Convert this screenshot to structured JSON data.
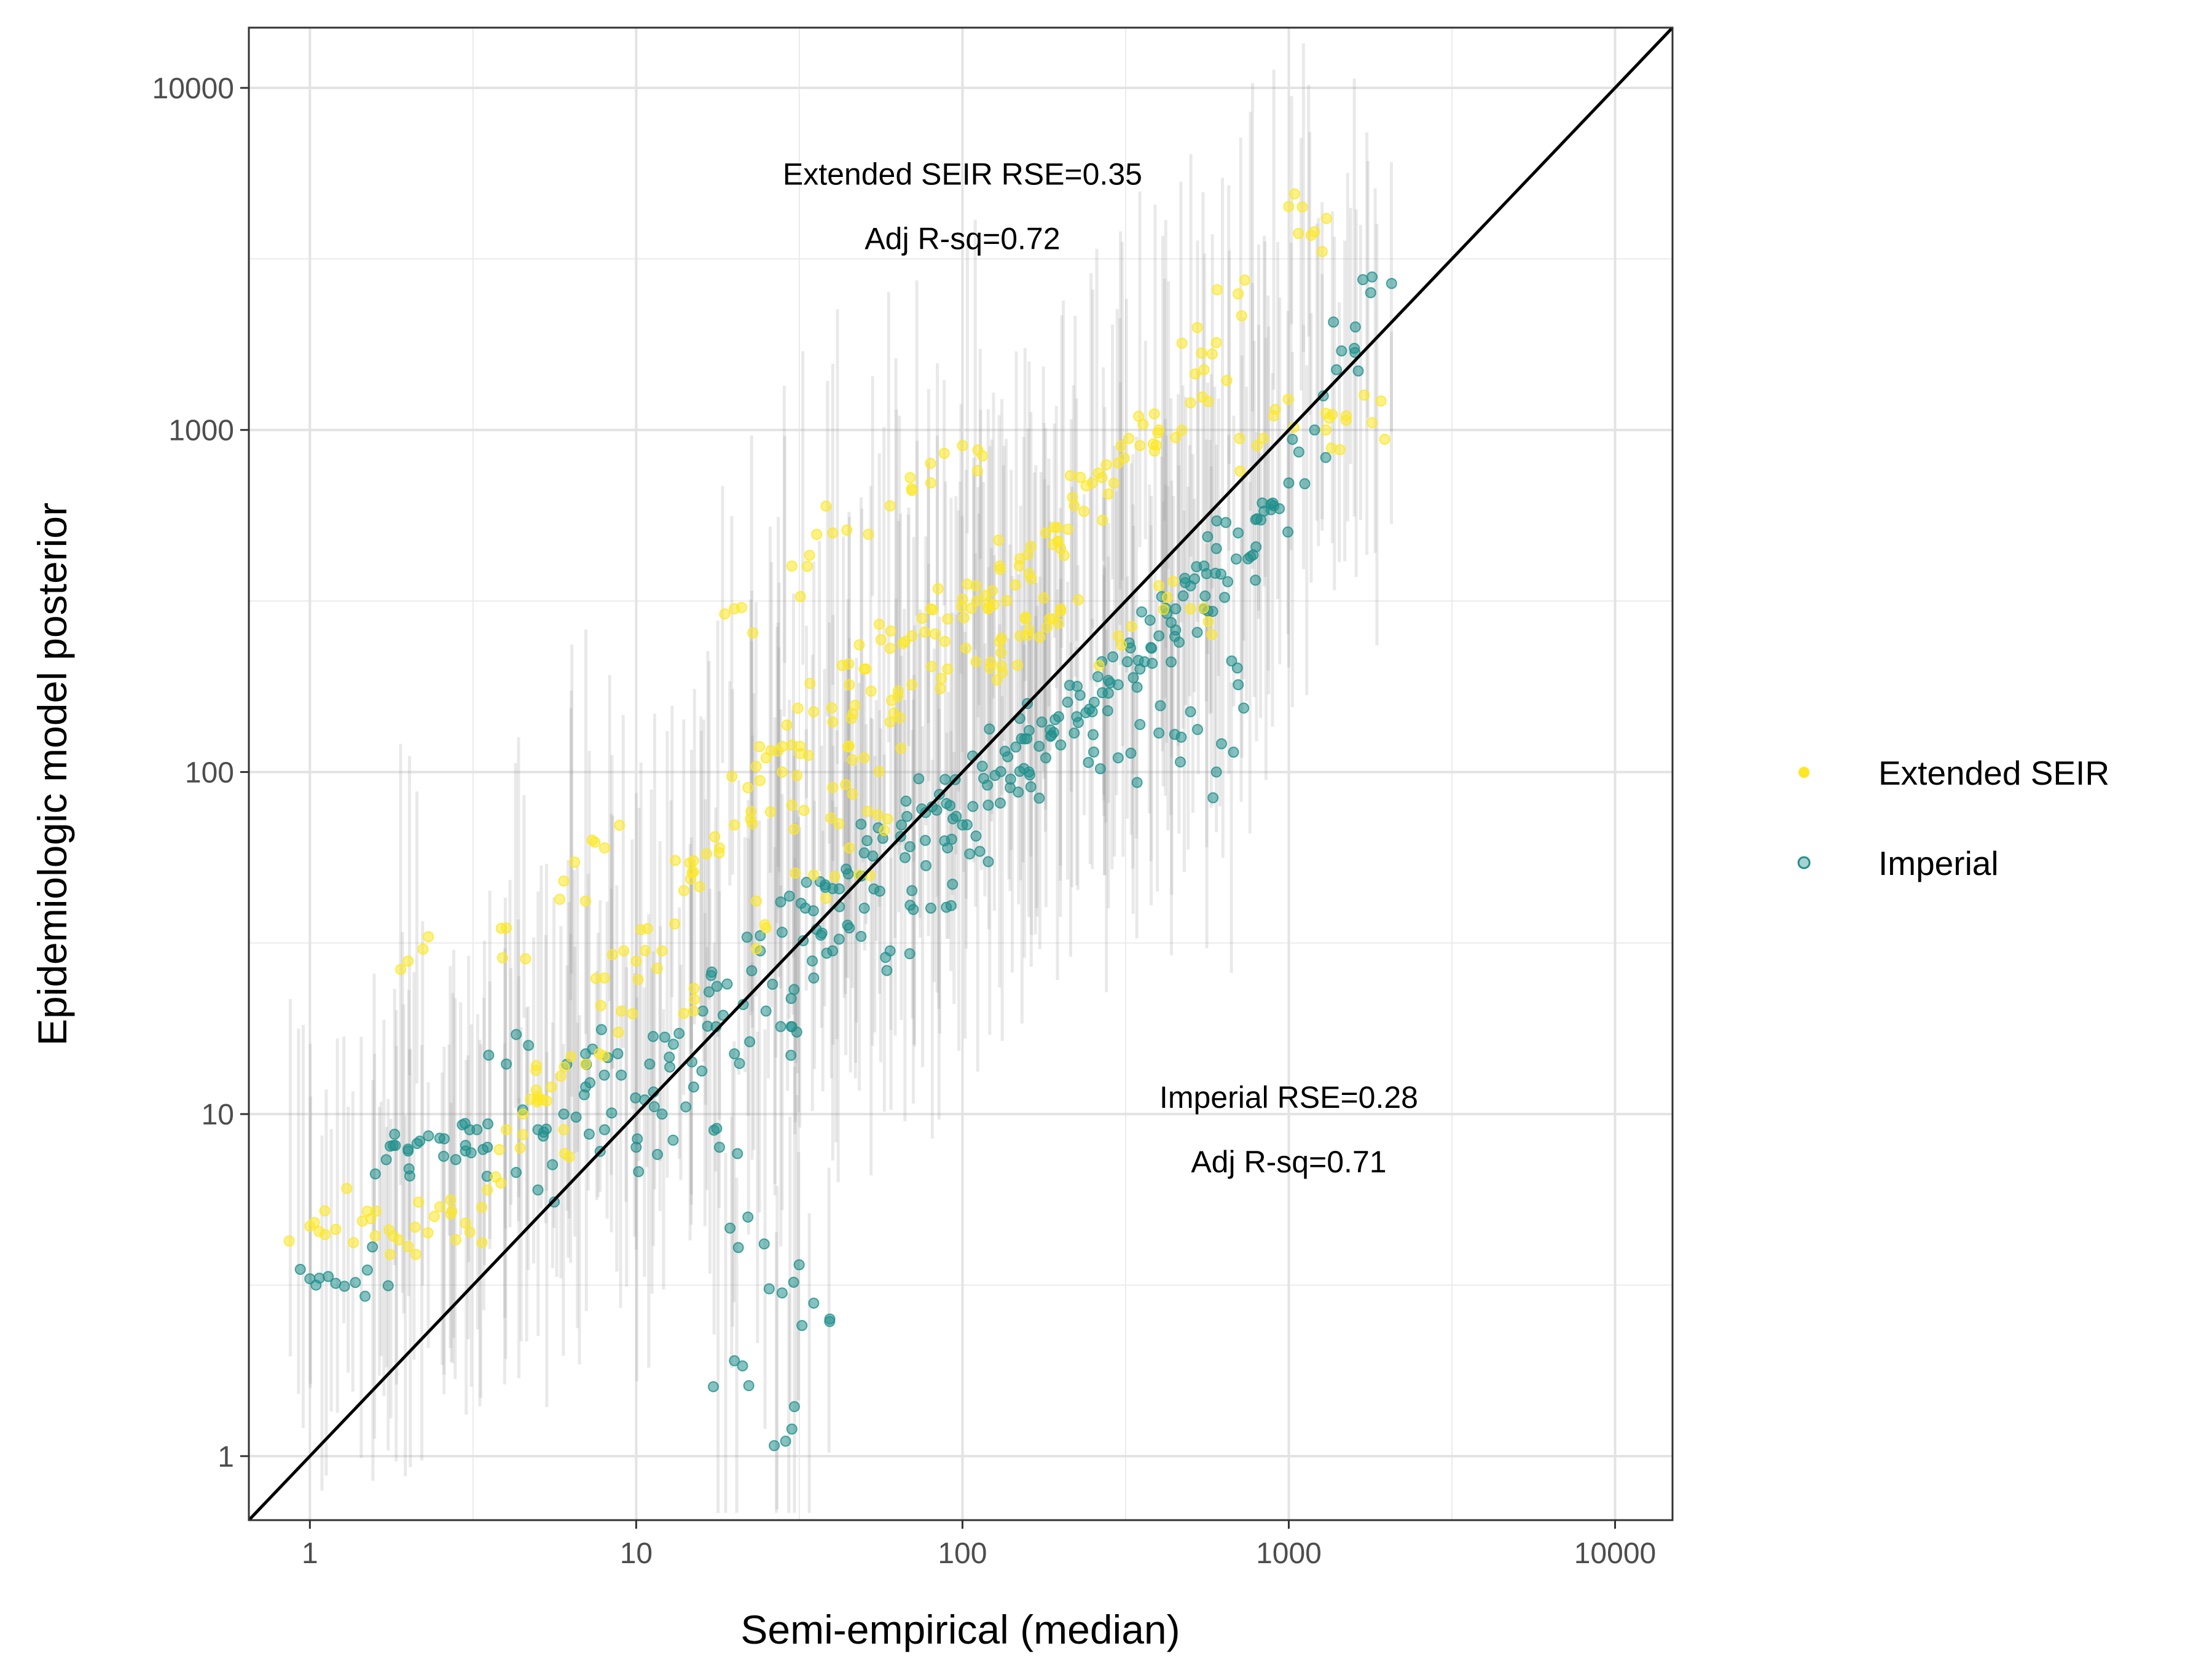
{
  "chart_data": {
    "type": "scatter",
    "xlabel": "Semi-empirical (median)",
    "ylabel": "Epidemiologic model posterior",
    "x_scale": "log10",
    "y_scale": "log10",
    "xlim": [
      0.65,
      15000
    ],
    "ylim": [
      0.65,
      15000
    ],
    "x_ticks": [
      1,
      10,
      100,
      1000,
      10000
    ],
    "x_tick_labels": [
      "1",
      "10",
      "100",
      "1000",
      "10000"
    ],
    "y_ticks": [
      1,
      10,
      100,
      1000,
      10000
    ],
    "y_tick_labels": [
      "1",
      "10",
      "100",
      "1000",
      "10000"
    ],
    "grid": true,
    "reference_line": "y = x",
    "legend_position": "right",
    "annotations": [
      {
        "lines": [
          "Extended SEIR RSE=0.35",
          "Adj R-sq=0.72"
        ],
        "x": 100,
        "y": 5000
      },
      {
        "lines": [
          "Imperial RSE=0.28",
          "Adj R-sq=0.71"
        ],
        "x": 1000,
        "y": 10
      }
    ],
    "series": [
      {
        "name": "Extended SEIR",
        "color": "#FDE725",
        "points": [
          [
            1,
            4.7
          ],
          [
            1.2,
            4.6
          ],
          [
            1.5,
            5.2
          ],
          [
            1.8,
            4.4
          ],
          [
            2,
            4.1
          ],
          [
            2.3,
            4.5
          ],
          [
            2.7,
            5.1
          ],
          [
            3,
            4.8
          ],
          [
            3.5,
            6
          ],
          [
            4,
            9
          ],
          [
            4.5,
            10
          ],
          [
            5,
            11
          ],
          [
            5.5,
            12
          ],
          [
            6,
            9
          ],
          [
            7,
            14
          ],
          [
            8,
            25
          ],
          [
            9,
            20
          ],
          [
            10,
            28
          ],
          [
            12,
            30
          ],
          [
            14,
            45
          ],
          [
            15,
            55
          ],
          [
            18,
            60
          ],
          [
            20,
            70
          ],
          [
            22,
            90
          ],
          [
            25,
            110
          ],
          [
            28,
            100
          ],
          [
            30,
            120
          ],
          [
            35,
            150
          ],
          [
            40,
            140
          ],
          [
            45,
            180
          ],
          [
            50,
            200
          ],
          [
            60,
            230
          ],
          [
            70,
            250
          ],
          [
            80,
            300
          ],
          [
            90,
            280
          ],
          [
            100,
            320
          ],
          [
            110,
            350
          ],
          [
            120,
            300
          ],
          [
            130,
            400
          ],
          [
            150,
            420
          ],
          [
            160,
            380
          ],
          [
            180,
            500
          ],
          [
            200,
            450
          ],
          [
            220,
            600
          ],
          [
            250,
            700
          ],
          [
            280,
            650
          ],
          [
            300,
            800
          ],
          [
            350,
            900
          ],
          [
            400,
            1000
          ],
          [
            450,
            950
          ],
          [
            500,
            1200
          ],
          [
            550,
            1500
          ],
          [
            600,
            1800
          ],
          [
            700,
            2500
          ],
          [
            800,
            900
          ],
          [
            900,
            1100
          ],
          [
            1000,
            4500
          ],
          [
            1200,
            3800
          ],
          [
            1300,
            1000
          ],
          [
            1500,
            1100
          ],
          [
            1800,
            1050
          ],
          [
            2,
            28
          ],
          [
            4,
            35
          ],
          [
            6,
            48
          ],
          [
            8,
            60
          ],
          [
            20,
            300
          ],
          [
            30,
            400
          ],
          [
            40,
            500
          ],
          [
            60,
            600
          ],
          [
            80,
            700
          ],
          [
            100,
            900
          ],
          [
            150,
            250
          ],
          [
            200,
            300
          ],
          [
            300,
            250
          ],
          [
            400,
            350
          ],
          [
            500,
            300
          ],
          [
            30,
            80
          ],
          [
            40,
            90
          ],
          [
            50,
            110
          ],
          [
            60,
            140
          ],
          [
            70,
            180
          ],
          [
            90,
            200
          ],
          [
            110,
            210
          ],
          [
            130,
            240
          ],
          [
            160,
            260
          ],
          [
            190,
            280
          ],
          [
            15,
            20
          ],
          [
            25,
            35
          ],
          [
            35,
            50
          ],
          [
            45,
            60
          ],
          [
            55,
            75
          ]
        ]
      },
      {
        "name": "Imperial",
        "color": "#21908C",
        "points": [
          [
            1,
            3.3
          ],
          [
            1.2,
            3.2
          ],
          [
            1.5,
            3.5
          ],
          [
            1.8,
            8.1
          ],
          [
            2,
            7.8
          ],
          [
            2.5,
            8.5
          ],
          [
            3,
            8.1
          ],
          [
            3.5,
            8
          ],
          [
            4,
            14
          ],
          [
            5,
            6
          ],
          [
            6,
            10
          ],
          [
            7,
            15
          ],
          [
            8,
            9
          ],
          [
            10,
            8
          ],
          [
            12,
            10
          ],
          [
            15,
            12
          ],
          [
            18,
            8
          ],
          [
            20,
            15
          ],
          [
            22,
            5
          ],
          [
            25,
            20
          ],
          [
            28,
            3
          ],
          [
            30,
            18
          ],
          [
            35,
            25
          ],
          [
            40,
            30
          ],
          [
            45,
            35
          ],
          [
            50,
            40
          ],
          [
            60,
            30
          ],
          [
            70,
            45
          ],
          [
            80,
            40
          ],
          [
            90,
            60
          ],
          [
            100,
            70
          ],
          [
            110,
            65
          ],
          [
            120,
            80
          ],
          [
            140,
            90
          ],
          [
            160,
            100
          ],
          [
            180,
            110
          ],
          [
            200,
            120
          ],
          [
            220,
            130
          ],
          [
            250,
            150
          ],
          [
            280,
            170
          ],
          [
            300,
            180
          ],
          [
            350,
            200
          ],
          [
            400,
            250
          ],
          [
            450,
            300
          ],
          [
            500,
            350
          ],
          [
            550,
            400
          ],
          [
            600,
            450
          ],
          [
            700,
            500
          ],
          [
            800,
            550
          ],
          [
            900,
            600
          ],
          [
            1000,
            700
          ],
          [
            1200,
            1000
          ],
          [
            1400,
            1500
          ],
          [
            1600,
            2000
          ],
          [
            1800,
            2800
          ],
          [
            700,
            180
          ],
          [
            600,
            100
          ],
          [
            500,
            150
          ],
          [
            400,
            130
          ],
          [
            300,
            110
          ],
          [
            20,
            1.9
          ],
          [
            30,
            1.2
          ],
          [
            35,
            2.8
          ],
          [
            2,
            7.9
          ],
          [
            3,
            7.8
          ],
          [
            5,
            9
          ],
          [
            7,
            12
          ],
          [
            9,
            13
          ],
          [
            11,
            14
          ],
          [
            13,
            16
          ],
          [
            16,
            20
          ],
          [
            19,
            24
          ],
          [
            24,
            30
          ],
          [
            28,
            34
          ],
          [
            33,
            40
          ],
          [
            38,
            46
          ],
          [
            44,
            52
          ],
          [
            50,
            58
          ],
          [
            57,
            64
          ],
          [
            65,
            70
          ],
          [
            75,
            78
          ],
          [
            85,
            86
          ],
          [
            95,
            95
          ],
          [
            115,
            104
          ],
          [
            135,
            115
          ],
          [
            155,
            125
          ],
          [
            175,
            140
          ],
          [
            210,
            160
          ],
          [
            260,
            190
          ],
          [
            320,
            210
          ],
          [
            380,
            230
          ],
          [
            450,
            260
          ],
          [
            550,
            300
          ],
          [
            650,
            360
          ],
          [
            750,
            420
          ]
        ]
      }
    ]
  },
  "legend": {
    "items": [
      {
        "label": "Extended SEIR",
        "color": "#FDE725"
      },
      {
        "label": "Imperial",
        "color": "#21908C"
      }
    ]
  }
}
